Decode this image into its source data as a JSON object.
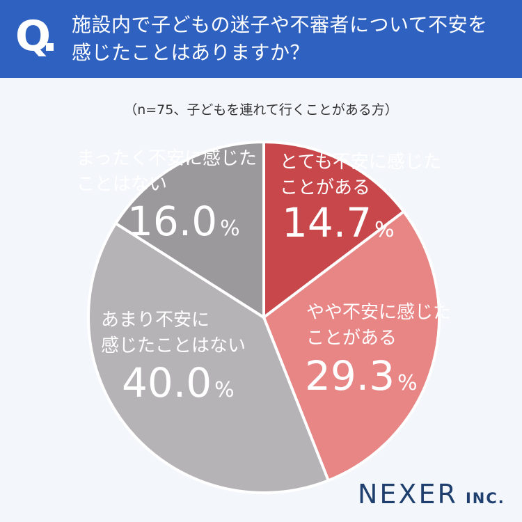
{
  "header": {
    "q_mark": "Q",
    "question_line1": "施設内で子どもの迷子や不審者について不安を",
    "question_line2": "感じたことはありますか？"
  },
  "note": "（n=75、子どもを連れて行くことがある方）",
  "brand": {
    "main": "NEXER",
    "sub": "INC."
  },
  "chart_data": {
    "type": "pie",
    "title": "施設内で子どもの迷子や不審者について不安を感じたことはありますか？",
    "slices": [
      {
        "label": "とても不安に感じたことがある",
        "value": 14.7,
        "color": "#c8474a",
        "label_lines": [
          "とても不安に感じた",
          "ことがある"
        ],
        "label_color": "#ffffff"
      },
      {
        "label": "やや不安に感じたことがある",
        "value": 29.3,
        "color": "#e88585",
        "label_lines": [
          "やや不安に感じた",
          "ことがある"
        ],
        "label_color": "#ffffff"
      },
      {
        "label": "あまり不安に感じたことはない",
        "value": 40.0,
        "color": "#b5b3b5",
        "label_lines": [
          "あまり不安に",
          "感じたことはない"
        ],
        "label_color": "#ffffff"
      },
      {
        "label": "まったく不安に感じたことはない",
        "value": 16.0,
        "color": "#9b999b",
        "label_lines": [
          "まったく不安に感じた",
          "ことはない"
        ],
        "label_color": "#ffffff"
      }
    ],
    "value_suffix": "%",
    "start_angle": "12 o'clock",
    "direction": "clockwise"
  }
}
